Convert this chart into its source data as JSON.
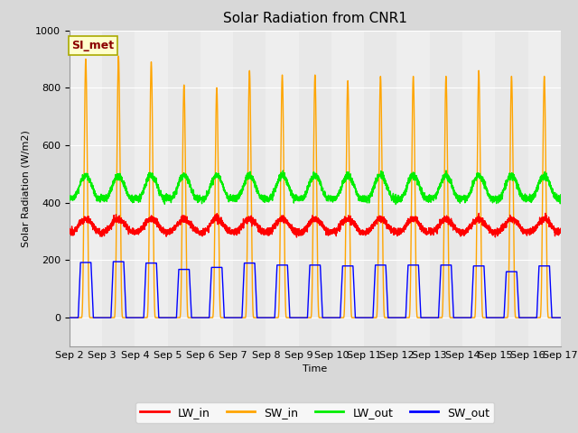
{
  "title": "Solar Radiation from CNR1",
  "xlabel": "Time",
  "ylabel": "Solar Radiation (W/m2)",
  "ylim": [
    -100,
    1000
  ],
  "fig_bg_color": "#d8d8d8",
  "plot_bg_color": "#e8e8e8",
  "grid_color": "white",
  "annotation_text": "SI_met",
  "annotation_color": "#8b0000",
  "annotation_bg": "#ffffcc",
  "annotation_edge": "#aaaa00",
  "series_colors": {
    "LW_in": "#ff0000",
    "SW_in": "#ffa500",
    "LW_out": "#00ee00",
    "SW_out": "#0000ff"
  },
  "xtick_labels": [
    "Sep 2",
    "Sep 3",
    "Sep 4",
    "Sep 5",
    "Sep 6",
    "Sep 7",
    "Sep 8",
    "Sep 9",
    "Sep 10",
    "Sep 11",
    "Sep 12",
    "Sep 13",
    "Sep 14",
    "Sep 15",
    "Sep 16",
    "Sep 17"
  ],
  "days": 15,
  "SW_in_peaks": [
    900,
    910,
    890,
    810,
    800,
    860,
    845,
    845,
    825,
    840,
    840,
    840,
    860,
    840,
    840
  ],
  "SW_out_peaks": [
    192,
    195,
    190,
    168,
    175,
    190,
    183,
    183,
    180,
    183,
    183,
    183,
    180,
    160,
    180
  ],
  "LW_in_base": 298,
  "LW_in_day_amp": 45,
  "LW_out_base": 415,
  "LW_out_day_amp": 80,
  "title_fontsize": 11,
  "legend_fontsize": 9,
  "tick_fontsize": 8,
  "linewidth": 1.0
}
